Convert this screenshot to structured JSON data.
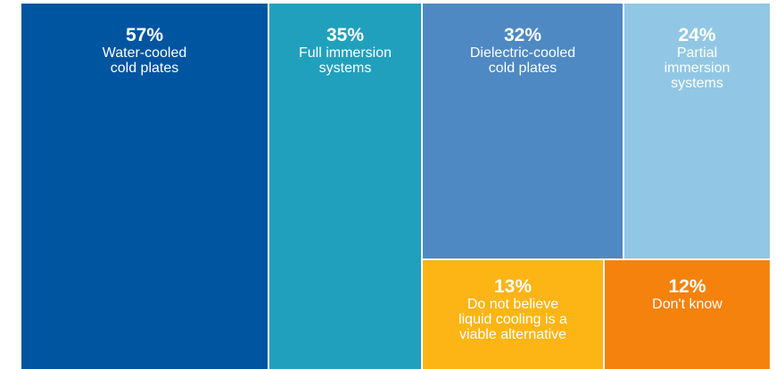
{
  "chart_data": {
    "type": "treemap",
    "unit": "%",
    "items": [
      {
        "label_lines": [
          "Water-cooled",
          "cold plates"
        ],
        "value": 57,
        "value_label": "57%",
        "color": "#0055a0"
      },
      {
        "label_lines": [
          "Full immersion",
          "systems"
        ],
        "value": 35,
        "value_label": "35%",
        "color": "#21a0bd"
      },
      {
        "label_lines": [
          "Dielectric-cooled",
          "cold plates"
        ],
        "value": 32,
        "value_label": "32%",
        "color": "#4e89c3"
      },
      {
        "label_lines": [
          "Partial",
          "immersion",
          "systems"
        ],
        "value": 24,
        "value_label": "24%",
        "color": "#91c7e4"
      },
      {
        "label_lines": [
          "Do not believe",
          "liquid cooling is a",
          "viable alternative"
        ],
        "value": 13,
        "value_label": "13%",
        "color": "#fdb515"
      },
      {
        "label_lines": [
          "Don't know"
        ],
        "value": 12,
        "value_label": "12%",
        "color": "#f5820c"
      }
    ]
  }
}
